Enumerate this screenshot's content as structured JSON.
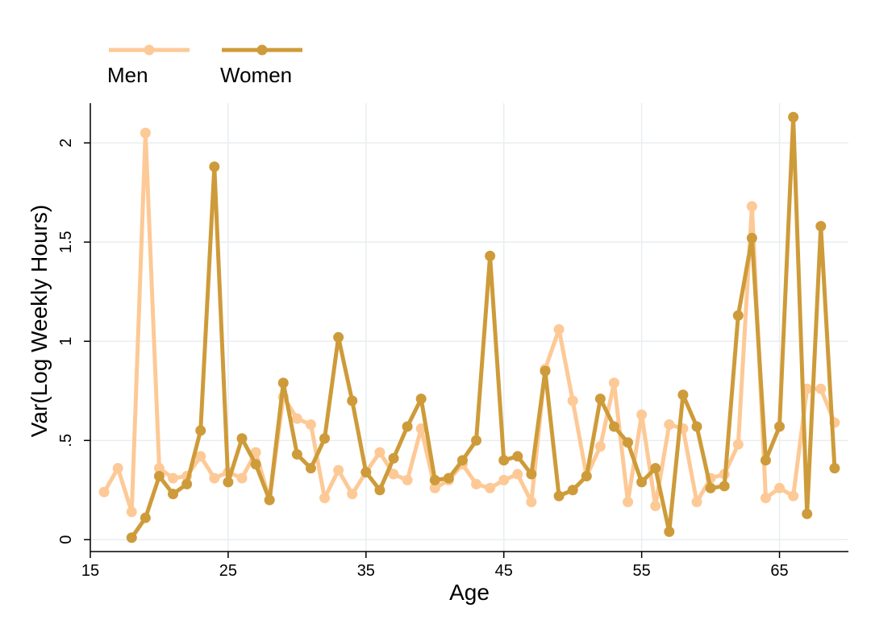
{
  "chart_data": {
    "type": "line",
    "xlabel": "Age",
    "ylabel": "Var(Log Weekly Hours)",
    "xlim": [
      15,
      70
    ],
    "ylim": [
      -0.06,
      2.2
    ],
    "x_ticks": [
      15,
      25,
      35,
      45,
      55,
      65
    ],
    "y_ticks": [
      0,
      0.5,
      1,
      1.5,
      2
    ],
    "y_tick_labels": [
      "0",
      ".5",
      "1",
      "1.5",
      "2"
    ],
    "grid": true,
    "legend_position": "top-left",
    "series": [
      {
        "name": "Men",
        "color": "#fdc996",
        "x": [
          16,
          17,
          18,
          19,
          20,
          21,
          22,
          23,
          24,
          25,
          26,
          27,
          28,
          29,
          30,
          31,
          32,
          33,
          34,
          35,
          36,
          37,
          38,
          39,
          40,
          41,
          42,
          43,
          44,
          45,
          46,
          47,
          48,
          49,
          50,
          51,
          52,
          53,
          54,
          55,
          56,
          57,
          58,
          59,
          60,
          61,
          62,
          63,
          64,
          65,
          66,
          67,
          68,
          69
        ],
        "y": [
          0.24,
          0.36,
          0.14,
          2.05,
          0.36,
          0.31,
          0.32,
          0.42,
          0.31,
          0.34,
          0.31,
          0.44,
          0.2,
          0.72,
          0.61,
          0.58,
          0.21,
          0.35,
          0.23,
          0.34,
          0.44,
          0.33,
          0.3,
          0.56,
          0.26,
          0.3,
          0.38,
          0.28,
          0.26,
          0.3,
          0.33,
          0.19,
          0.86,
          1.06,
          0.7,
          0.32,
          0.47,
          0.79,
          0.19,
          0.63,
          0.17,
          0.58,
          0.56,
          0.19,
          0.31,
          0.33,
          0.48,
          1.68,
          0.21,
          0.26,
          0.22,
          0.76,
          0.76,
          0.59
        ]
      },
      {
        "name": "Women",
        "color": "#ce9b3a",
        "x": [
          18,
          19,
          20,
          21,
          22,
          23,
          24,
          25,
          26,
          27,
          28,
          29,
          30,
          31,
          32,
          33,
          34,
          35,
          36,
          37,
          38,
          39,
          40,
          41,
          42,
          43,
          44,
          45,
          46,
          47,
          48,
          49,
          50,
          51,
          52,
          53,
          54,
          55,
          56,
          57,
          58,
          59,
          60,
          61,
          62,
          63,
          64,
          65,
          66,
          67,
          68,
          69
        ],
        "y": [
          0.01,
          0.11,
          0.32,
          0.23,
          0.28,
          0.55,
          1.88,
          0.29,
          0.51,
          0.38,
          0.2,
          0.79,
          0.43,
          0.36,
          0.51,
          1.02,
          0.7,
          0.34,
          0.25,
          0.41,
          0.57,
          0.71,
          0.3,
          0.31,
          0.4,
          0.5,
          1.43,
          0.4,
          0.42,
          0.33,
          0.85,
          0.22,
          0.25,
          0.32,
          0.71,
          0.57,
          0.49,
          0.29,
          0.36,
          0.04,
          0.73,
          0.57,
          0.26,
          0.27,
          1.13,
          1.52,
          0.4,
          0.57,
          2.13,
          0.13,
          1.58,
          0.36
        ]
      }
    ]
  }
}
